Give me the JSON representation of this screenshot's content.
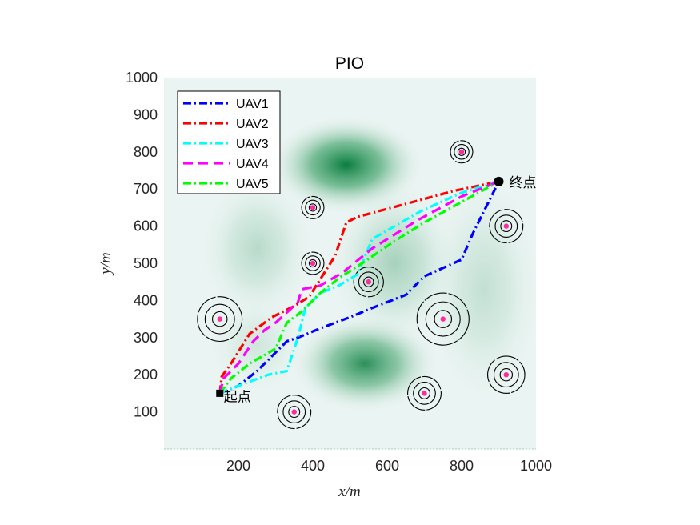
{
  "chart_data": {
    "type": "line",
    "title": "PIO",
    "xlabel": "x/m",
    "ylabel": "y/m",
    "xlim": [
      0,
      1000
    ],
    "ylim": [
      0,
      1000
    ],
    "x_ticks": [
      200,
      400,
      600,
      800,
      1000
    ],
    "y_ticks": [
      100,
      200,
      300,
      400,
      500,
      600,
      700,
      800,
      900,
      1000
    ],
    "legend_position": "top-left",
    "start": {
      "x": 150,
      "y": 150,
      "label": "起点"
    },
    "goal": {
      "x": 900,
      "y": 720,
      "label": "终点"
    },
    "series": [
      {
        "name": "UAV1",
        "color": "#0000ff",
        "dash": "dashdot",
        "points": [
          [
            150,
            150
          ],
          [
            200,
            170
          ],
          [
            250,
            210
          ],
          [
            330,
            290
          ],
          [
            360,
            300
          ],
          [
            420,
            325
          ],
          [
            500,
            355
          ],
          [
            560,
            380
          ],
          [
            650,
            415
          ],
          [
            700,
            465
          ],
          [
            800,
            510
          ],
          [
            830,
            580
          ],
          [
            870,
            660
          ],
          [
            900,
            720
          ]
        ]
      },
      {
        "name": "UAV2",
        "color": "#ff0000",
        "dash": "dashdot",
        "points": [
          [
            150,
            150
          ],
          [
            155,
            195
          ],
          [
            180,
            230
          ],
          [
            230,
            310
          ],
          [
            290,
            355
          ],
          [
            350,
            385
          ],
          [
            390,
            410
          ],
          [
            460,
            520
          ],
          [
            490,
            610
          ],
          [
            520,
            625
          ],
          [
            650,
            660
          ],
          [
            780,
            695
          ],
          [
            900,
            720
          ]
        ]
      },
      {
        "name": "UAV3",
        "color": "#00ffff",
        "dash": "dashdot",
        "points": [
          [
            150,
            150
          ],
          [
            200,
            170
          ],
          [
            280,
            200
          ],
          [
            330,
            210
          ],
          [
            360,
            300
          ],
          [
            380,
            380
          ],
          [
            420,
            420
          ],
          [
            470,
            440
          ],
          [
            520,
            470
          ],
          [
            560,
            565
          ],
          [
            620,
            600
          ],
          [
            690,
            640
          ],
          [
            800,
            690
          ],
          [
            900,
            720
          ]
        ]
      },
      {
        "name": "UAV4",
        "color": "#ff00ff",
        "dash": "dash",
        "points": [
          [
            150,
            150
          ],
          [
            160,
            190
          ],
          [
            200,
            230
          ],
          [
            240,
            290
          ],
          [
            270,
            320
          ],
          [
            300,
            340
          ],
          [
            360,
            395
          ],
          [
            370,
            430
          ],
          [
            420,
            440
          ],
          [
            480,
            475
          ],
          [
            560,
            540
          ],
          [
            680,
            615
          ],
          [
            800,
            680
          ],
          [
            900,
            720
          ]
        ]
      },
      {
        "name": "UAV5",
        "color": "#00ff00",
        "dash": "dashdot",
        "points": [
          [
            150,
            150
          ],
          [
            180,
            190
          ],
          [
            230,
            230
          ],
          [
            300,
            270
          ],
          [
            330,
            340
          ],
          [
            370,
            370
          ],
          [
            420,
            420
          ],
          [
            470,
            460
          ],
          [
            540,
            505
          ],
          [
            620,
            560
          ],
          [
            700,
            610
          ],
          [
            800,
            665
          ],
          [
            900,
            720
          ]
        ]
      }
    ],
    "threats": [
      {
        "x": 150,
        "y": 350,
        "radius": 60
      },
      {
        "x": 350,
        "y": 100,
        "radius": 45
      },
      {
        "x": 400,
        "y": 650,
        "radius": 30
      },
      {
        "x": 400,
        "y": 500,
        "radius": 30
      },
      {
        "x": 550,
        "y": 450,
        "radius": 40
      },
      {
        "x": 700,
        "y": 150,
        "radius": 45
      },
      {
        "x": 750,
        "y": 350,
        "radius": 70
      },
      {
        "x": 800,
        "y": 800,
        "radius": 30
      },
      {
        "x": 920,
        "y": 600,
        "radius": 45
      },
      {
        "x": 920,
        "y": 200,
        "radius": 50
      }
    ],
    "terrain_peaks": [
      {
        "x": 490,
        "y": 765,
        "sx": 95,
        "sy": 60,
        "h": 1.0
      },
      {
        "x": 540,
        "y": 230,
        "sx": 90,
        "sy": 60,
        "h": 0.85
      },
      {
        "x": 250,
        "y": 540,
        "sx": 70,
        "sy": 90,
        "h": 0.22
      },
      {
        "x": 620,
        "y": 500,
        "sx": 80,
        "sy": 100,
        "h": 0.3
      },
      {
        "x": 860,
        "y": 430,
        "sx": 70,
        "sy": 140,
        "h": 0.18
      },
      {
        "x": 250,
        "y": 280,
        "sx": 60,
        "sy": 60,
        "h": 0.12
      }
    ]
  }
}
